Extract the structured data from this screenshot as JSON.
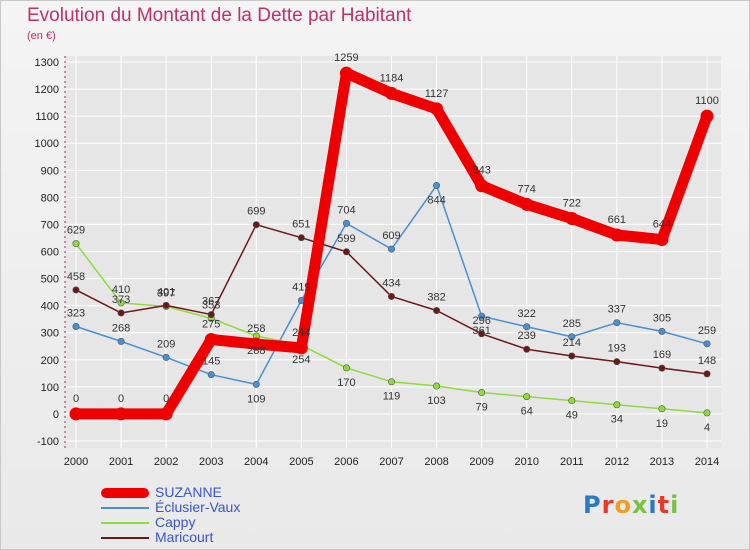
{
  "title": "Evolution du Montant de la Dette par Habitant",
  "unit_label": "(en €)",
  "logo_text": "Proxiti",
  "colors": {
    "title": "#c0306a",
    "axis_text": "#222222",
    "legend_text": "#3a55cc",
    "grid": "#ffffff"
  },
  "chart_data": {
    "type": "line",
    "categories": [
      "2000",
      "2001",
      "2002",
      "2003",
      "2004",
      "2005",
      "2006",
      "2007",
      "2008",
      "2009",
      "2010",
      "2011",
      "2012",
      "2013",
      "2014"
    ],
    "ylim": [
      -100,
      1300
    ],
    "yticks": [
      -100,
      0,
      100,
      200,
      300,
      400,
      500,
      600,
      700,
      800,
      900,
      1000,
      1100,
      1200,
      1300
    ],
    "grid": true,
    "legend_position": "bottom-left",
    "series": [
      {
        "name": "SUZANNE",
        "color": "#ee0000",
        "bold": true,
        "values": [
          0,
          0,
          0,
          275,
          258,
          244,
          1259,
          1184,
          1127,
          843,
          774,
          722,
          661,
          644,
          1100
        ]
      },
      {
        "name": "Éclusier-Vaux",
        "color": "#4a8fd0",
        "bold": false,
        "values": [
          323,
          268,
          209,
          145,
          109,
          419,
          704,
          609,
          844,
          361,
          322,
          285,
          337,
          305,
          259
        ]
      },
      {
        "name": "Cappy",
        "color": "#8edb3c",
        "bold": false,
        "values": [
          629,
          410,
          397,
          353,
          288,
          254,
          170,
          119,
          103,
          79,
          64,
          49,
          34,
          19,
          4
        ]
      },
      {
        "name": "Maricourt",
        "color": "#6b1818",
        "bold": false,
        "values": [
          458,
          373,
          401,
          367,
          699,
          651,
          599,
          434,
          382,
          296,
          239,
          214,
          193,
          169,
          148
        ]
      }
    ]
  }
}
